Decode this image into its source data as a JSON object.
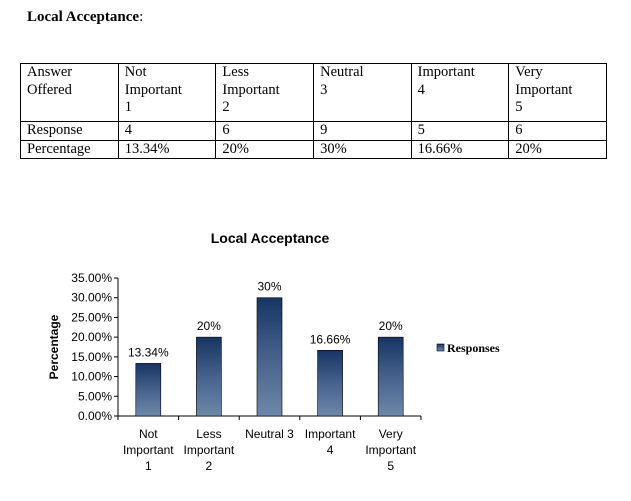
{
  "heading": {
    "title": "Local Acceptance",
    "suffix": ":"
  },
  "table": {
    "header": [
      [
        "Answer",
        "Offered",
        ""
      ],
      [
        "Not",
        "Important",
        "1"
      ],
      [
        "Less",
        "Important",
        "2"
      ],
      [
        "Neutral",
        "3",
        ""
      ],
      [
        "Important",
        "4",
        ""
      ],
      [
        "Very",
        "Important",
        "5"
      ]
    ],
    "rows": [
      [
        "Response",
        "4",
        "6",
        "9",
        "5",
        "6"
      ],
      [
        "Percentage",
        "13.34%",
        "20%",
        "30%",
        "16.66%",
        "20%"
      ]
    ]
  },
  "chart_data": {
    "type": "bar",
    "title": "Local Acceptance",
    "xlabel": "",
    "ylabel": "Percentage",
    "categories": [
      [
        "Not",
        "Important",
        "1"
      ],
      [
        "Less",
        "Important",
        "2"
      ],
      [
        "Neutral 3"
      ],
      [
        "Important",
        "4"
      ],
      [
        "Very",
        "Important",
        "5"
      ]
    ],
    "series": [
      {
        "name": "Responses",
        "values": [
          13.34,
          20,
          30,
          16.66,
          20
        ]
      }
    ],
    "data_labels": [
      "13.34%",
      "20%",
      "30%",
      "16.66%",
      "20%"
    ],
    "ylim": [
      0,
      35
    ],
    "yticks": [
      "0.00%",
      "5.00%",
      "10.00%",
      "15.00%",
      "20.00%",
      "25.00%",
      "30.00%",
      "35.00%"
    ],
    "grid": false,
    "legend": "right",
    "colors": {
      "bar_top": "#173563",
      "bar_bottom": "#6d88a8"
    }
  }
}
